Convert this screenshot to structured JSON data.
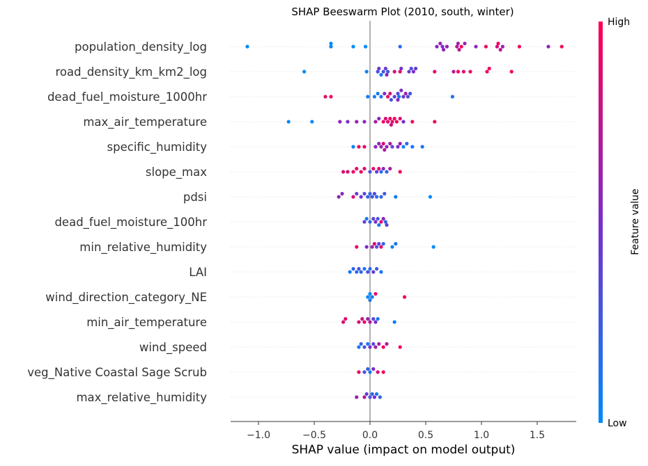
{
  "chart_data": {
    "type": "scatter",
    "subtype": "beeswarm",
    "title": "SHAP Beeswarm Plot (2010, south, winter)",
    "xlabel": "SHAP value (impact on model output)",
    "xlim": [
      -1.25,
      1.85
    ],
    "xticks": [
      -1.0,
      -0.5,
      0.0,
      0.5,
      1.0,
      1.5
    ],
    "xtick_labels": [
      "−1.0",
      "−0.5",
      "0.0",
      "0.5",
      "1.0",
      "1.5"
    ],
    "colorbar": {
      "label": "Feature value",
      "high_label": "High",
      "low_label": "Low",
      "low_color": "#008afb",
      "high_color": "#ff0052",
      "mid_color": "#7b2cc9"
    },
    "features": [
      "population_density_log",
      "road_density_km_km2_log",
      "dead_fuel_moisture_1000hr",
      "max_air_temperature",
      "specific_humidity",
      "slope_max",
      "pdsi",
      "dead_fuel_moisture_100hr",
      "min_relative_humidity",
      "LAI",
      "wind_direction_category_NE",
      "min_air_temperature",
      "wind_speed",
      "veg_Native Coastal Sage Scrub",
      "max_relative_humidity"
    ],
    "points": [
      [
        [
          -1.1,
          0.0
        ],
        [
          -0.35,
          0.05
        ],
        [
          -0.35,
          0.0
        ],
        [
          -0.15,
          0.0
        ],
        [
          -0.04,
          0.0
        ],
        [
          0.27,
          0.15
        ],
        [
          0.6,
          0.55
        ],
        [
          0.63,
          0.6
        ],
        [
          0.65,
          0.5
        ],
        [
          0.66,
          0.55
        ],
        [
          0.69,
          0.6
        ],
        [
          0.78,
          0.7
        ],
        [
          0.79,
          0.65
        ],
        [
          0.8,
          0.75
        ],
        [
          0.82,
          0.95
        ],
        [
          0.85,
          0.6
        ],
        [
          0.95,
          0.55
        ],
        [
          1.04,
          0.95
        ],
        [
          1.14,
          0.85
        ],
        [
          1.15,
          0.95
        ],
        [
          1.17,
          0.75
        ],
        [
          1.19,
          0.6
        ],
        [
          1.34,
          0.95
        ],
        [
          1.6,
          0.6
        ],
        [
          1.72,
          0.95
        ]
      ],
      [
        [
          -0.59,
          0.0
        ],
        [
          -0.03,
          0.05
        ],
        [
          0.07,
          0.3
        ],
        [
          0.08,
          0.45
        ],
        [
          0.1,
          0.1
        ],
        [
          0.12,
          0.3
        ],
        [
          0.14,
          0.4
        ],
        [
          0.15,
          0.55
        ],
        [
          0.16,
          0.3
        ],
        [
          0.22,
          0.85
        ],
        [
          0.27,
          0.9
        ],
        [
          0.28,
          0.45
        ],
        [
          0.35,
          0.4
        ],
        [
          0.37,
          0.35
        ],
        [
          0.39,
          0.5
        ],
        [
          0.41,
          0.4
        ],
        [
          0.58,
          0.9
        ],
        [
          0.75,
          0.7
        ],
        [
          0.79,
          0.95
        ],
        [
          0.84,
          0.9
        ],
        [
          0.9,
          0.95
        ],
        [
          1.05,
          0.95
        ],
        [
          1.07,
          0.95
        ],
        [
          1.27,
          0.95
        ]
      ],
      [
        [
          -0.4,
          0.9
        ],
        [
          -0.35,
          0.95
        ],
        [
          -0.02,
          0.1
        ],
        [
          0.04,
          0.05
        ],
        [
          0.07,
          0.1
        ],
        [
          0.1,
          0.15
        ],
        [
          0.13,
          0.5
        ],
        [
          0.16,
          0.9
        ],
        [
          0.18,
          0.85
        ],
        [
          0.19,
          0.3
        ],
        [
          0.22,
          0.4
        ],
        [
          0.25,
          0.35
        ],
        [
          0.25,
          0.55
        ],
        [
          0.26,
          0.1
        ],
        [
          0.28,
          0.5
        ],
        [
          0.3,
          0.45
        ],
        [
          0.32,
          0.6
        ],
        [
          0.34,
          0.35
        ],
        [
          0.36,
          0.3
        ],
        [
          0.74,
          0.15
        ]
      ],
      [
        [
          -0.73,
          0.0
        ],
        [
          -0.52,
          0.0
        ],
        [
          -0.27,
          0.6
        ],
        [
          -0.2,
          0.5
        ],
        [
          -0.12,
          0.6
        ],
        [
          -0.05,
          0.55
        ],
        [
          0.05,
          0.7
        ],
        [
          0.08,
          0.55
        ],
        [
          0.12,
          0.95
        ],
        [
          0.14,
          0.85
        ],
        [
          0.16,
          0.9
        ],
        [
          0.18,
          0.95
        ],
        [
          0.19,
          0.8
        ],
        [
          0.2,
          0.9
        ],
        [
          0.22,
          0.95
        ],
        [
          0.24,
          0.95
        ],
        [
          0.27,
          0.85
        ],
        [
          0.3,
          0.5
        ],
        [
          0.38,
          0.95
        ],
        [
          0.58,
          0.95
        ]
      ],
      [
        [
          -0.15,
          0.05
        ],
        [
          -0.1,
          0.95
        ],
        [
          -0.05,
          0.9
        ],
        [
          0.05,
          0.55
        ],
        [
          0.08,
          0.55
        ],
        [
          0.1,
          0.6
        ],
        [
          0.12,
          0.85
        ],
        [
          0.13,
          0.7
        ],
        [
          0.15,
          0.6
        ],
        [
          0.18,
          0.65
        ],
        [
          0.2,
          0.4
        ],
        [
          0.25,
          0.5
        ],
        [
          0.27,
          0.6
        ],
        [
          0.3,
          0.05
        ],
        [
          0.33,
          0.2
        ],
        [
          0.38,
          0.1
        ],
        [
          0.47,
          0.1
        ]
      ],
      [
        [
          -0.24,
          0.9
        ],
        [
          -0.2,
          0.85
        ],
        [
          -0.15,
          0.95
        ],
        [
          -0.12,
          0.9
        ],
        [
          -0.08,
          0.95
        ],
        [
          -0.05,
          0.85
        ],
        [
          0.0,
          0.3
        ],
        [
          0.03,
          0.9
        ],
        [
          0.06,
          0.4
        ],
        [
          0.08,
          0.9
        ],
        [
          0.1,
          0.15
        ],
        [
          0.12,
          0.5
        ],
        [
          0.15,
          0.2
        ],
        [
          0.18,
          0.7
        ],
        [
          0.27,
          0.95
        ]
      ],
      [
        [
          -0.28,
          0.6
        ],
        [
          -0.25,
          0.55
        ],
        [
          -0.15,
          0.85
        ],
        [
          -0.12,
          0.4
        ],
        [
          -0.08,
          0.45
        ],
        [
          -0.05,
          0.35
        ],
        [
          -0.02,
          0.2
        ],
        [
          0.0,
          0.2
        ],
        [
          0.02,
          0.3
        ],
        [
          0.04,
          0.35
        ],
        [
          0.06,
          0.15
        ],
        [
          0.1,
          0.2
        ],
        [
          0.13,
          0.25
        ],
        [
          0.23,
          0.1
        ],
        [
          0.54,
          0.0
        ]
      ],
      [
        [
          -0.05,
          0.4
        ],
        [
          -0.03,
          0.1
        ],
        [
          0.0,
          0.2
        ],
        [
          0.03,
          0.4
        ],
        [
          0.05,
          0.5
        ],
        [
          0.07,
          0.3
        ],
        [
          0.08,
          0.1
        ],
        [
          0.1,
          0.9
        ],
        [
          0.12,
          0.55
        ],
        [
          0.14,
          0.2
        ],
        [
          0.15,
          0.4
        ]
      ],
      [
        [
          -0.12,
          0.95
        ],
        [
          -0.03,
          0.5
        ],
        [
          0.02,
          0.65
        ],
        [
          0.04,
          0.85
        ],
        [
          0.06,
          0.3
        ],
        [
          0.08,
          0.4
        ],
        [
          0.1,
          0.9
        ],
        [
          0.12,
          0.2
        ],
        [
          0.2,
          0.05
        ],
        [
          0.23,
          0.1
        ],
        [
          0.57,
          0.0
        ]
      ],
      [
        [
          -0.18,
          0.1
        ],
        [
          -0.15,
          0.2
        ],
        [
          -0.12,
          0.15
        ],
        [
          -0.1,
          0.3
        ],
        [
          -0.08,
          0.2
        ],
        [
          -0.05,
          0.1
        ],
        [
          -0.02,
          0.3
        ],
        [
          0.0,
          0.15
        ],
        [
          0.03,
          0.4
        ],
        [
          0.06,
          0.25
        ],
        [
          0.1,
          0.1
        ]
      ],
      [
        [
          -0.02,
          0.0
        ],
        [
          0.0,
          0.0
        ],
        [
          0.0,
          0.1
        ],
        [
          0.02,
          0.05
        ],
        [
          0.05,
          0.95
        ],
        [
          0.31,
          0.95
        ]
      ],
      [
        [
          -0.24,
          0.85
        ],
        [
          -0.22,
          0.9
        ],
        [
          -0.1,
          0.85
        ],
        [
          -0.07,
          0.8
        ],
        [
          -0.05,
          0.9
        ],
        [
          -0.02,
          0.6
        ],
        [
          0.0,
          0.7
        ],
        [
          0.03,
          0.35
        ],
        [
          0.05,
          0.5
        ],
        [
          0.07,
          0.1
        ],
        [
          0.22,
          0.05
        ]
      ],
      [
        [
          -0.1,
          0.1
        ],
        [
          -0.08,
          0.2
        ],
        [
          -0.05,
          0.3
        ],
        [
          -0.02,
          0.15
        ],
        [
          0.0,
          0.5
        ],
        [
          0.03,
          0.35
        ],
        [
          0.05,
          0.6
        ],
        [
          0.08,
          0.65
        ],
        [
          0.12,
          0.95
        ],
        [
          0.15,
          0.7
        ],
        [
          0.27,
          0.95
        ]
      ],
      [
        [
          -0.1,
          0.9
        ],
        [
          -0.05,
          0.3
        ],
        [
          -0.02,
          0.2
        ],
        [
          0.0,
          0.1
        ],
        [
          0.03,
          0.5
        ],
        [
          0.07,
          0.85
        ],
        [
          0.12,
          0.95
        ]
      ],
      [
        [
          -0.12,
          0.6
        ],
        [
          -0.05,
          0.7
        ],
        [
          -0.03,
          0.4
        ],
        [
          0.0,
          0.3
        ],
        [
          0.02,
          0.2
        ],
        [
          0.04,
          0.5
        ],
        [
          0.06,
          0.1
        ],
        [
          0.09,
          0.2
        ]
      ]
    ]
  }
}
